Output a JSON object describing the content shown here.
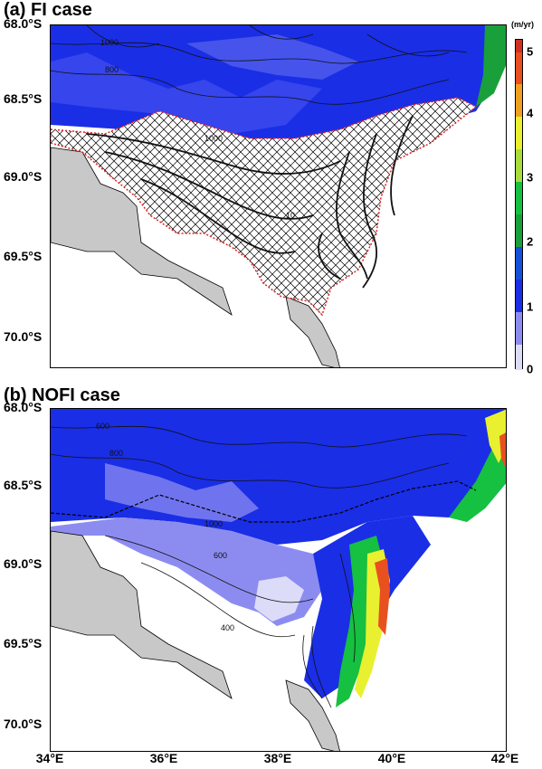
{
  "panels": [
    {
      "title": "(a) FI case"
    },
    {
      "title": "(b) NOFI case"
    }
  ],
  "y_labels": [
    "68.0°S",
    "68.5°S",
    "69.0°S",
    "69.5°S",
    "70.0°S"
  ],
  "x_labels": [
    "34°E",
    "36°E",
    "38°E",
    "40°E",
    "42°E"
  ],
  "colorbar": {
    "unit": "(m/yr)",
    "ticks": [
      "0",
      "1",
      "2",
      "3",
      "4",
      "5"
    ],
    "colors": [
      "#dcdcf8",
      "#8c8cf0",
      "#1a2ee6",
      "#1450d8",
      "#1aa03a",
      "#16c040",
      "#a8dc3c",
      "#e8f030",
      "#f0a020",
      "#e84020"
    ]
  },
  "contour_labels": {
    "a": [
      "1000",
      "800",
      "1000",
      "10"
    ],
    "b": [
      "600",
      "800",
      "1000",
      "600",
      "400"
    ]
  }
}
